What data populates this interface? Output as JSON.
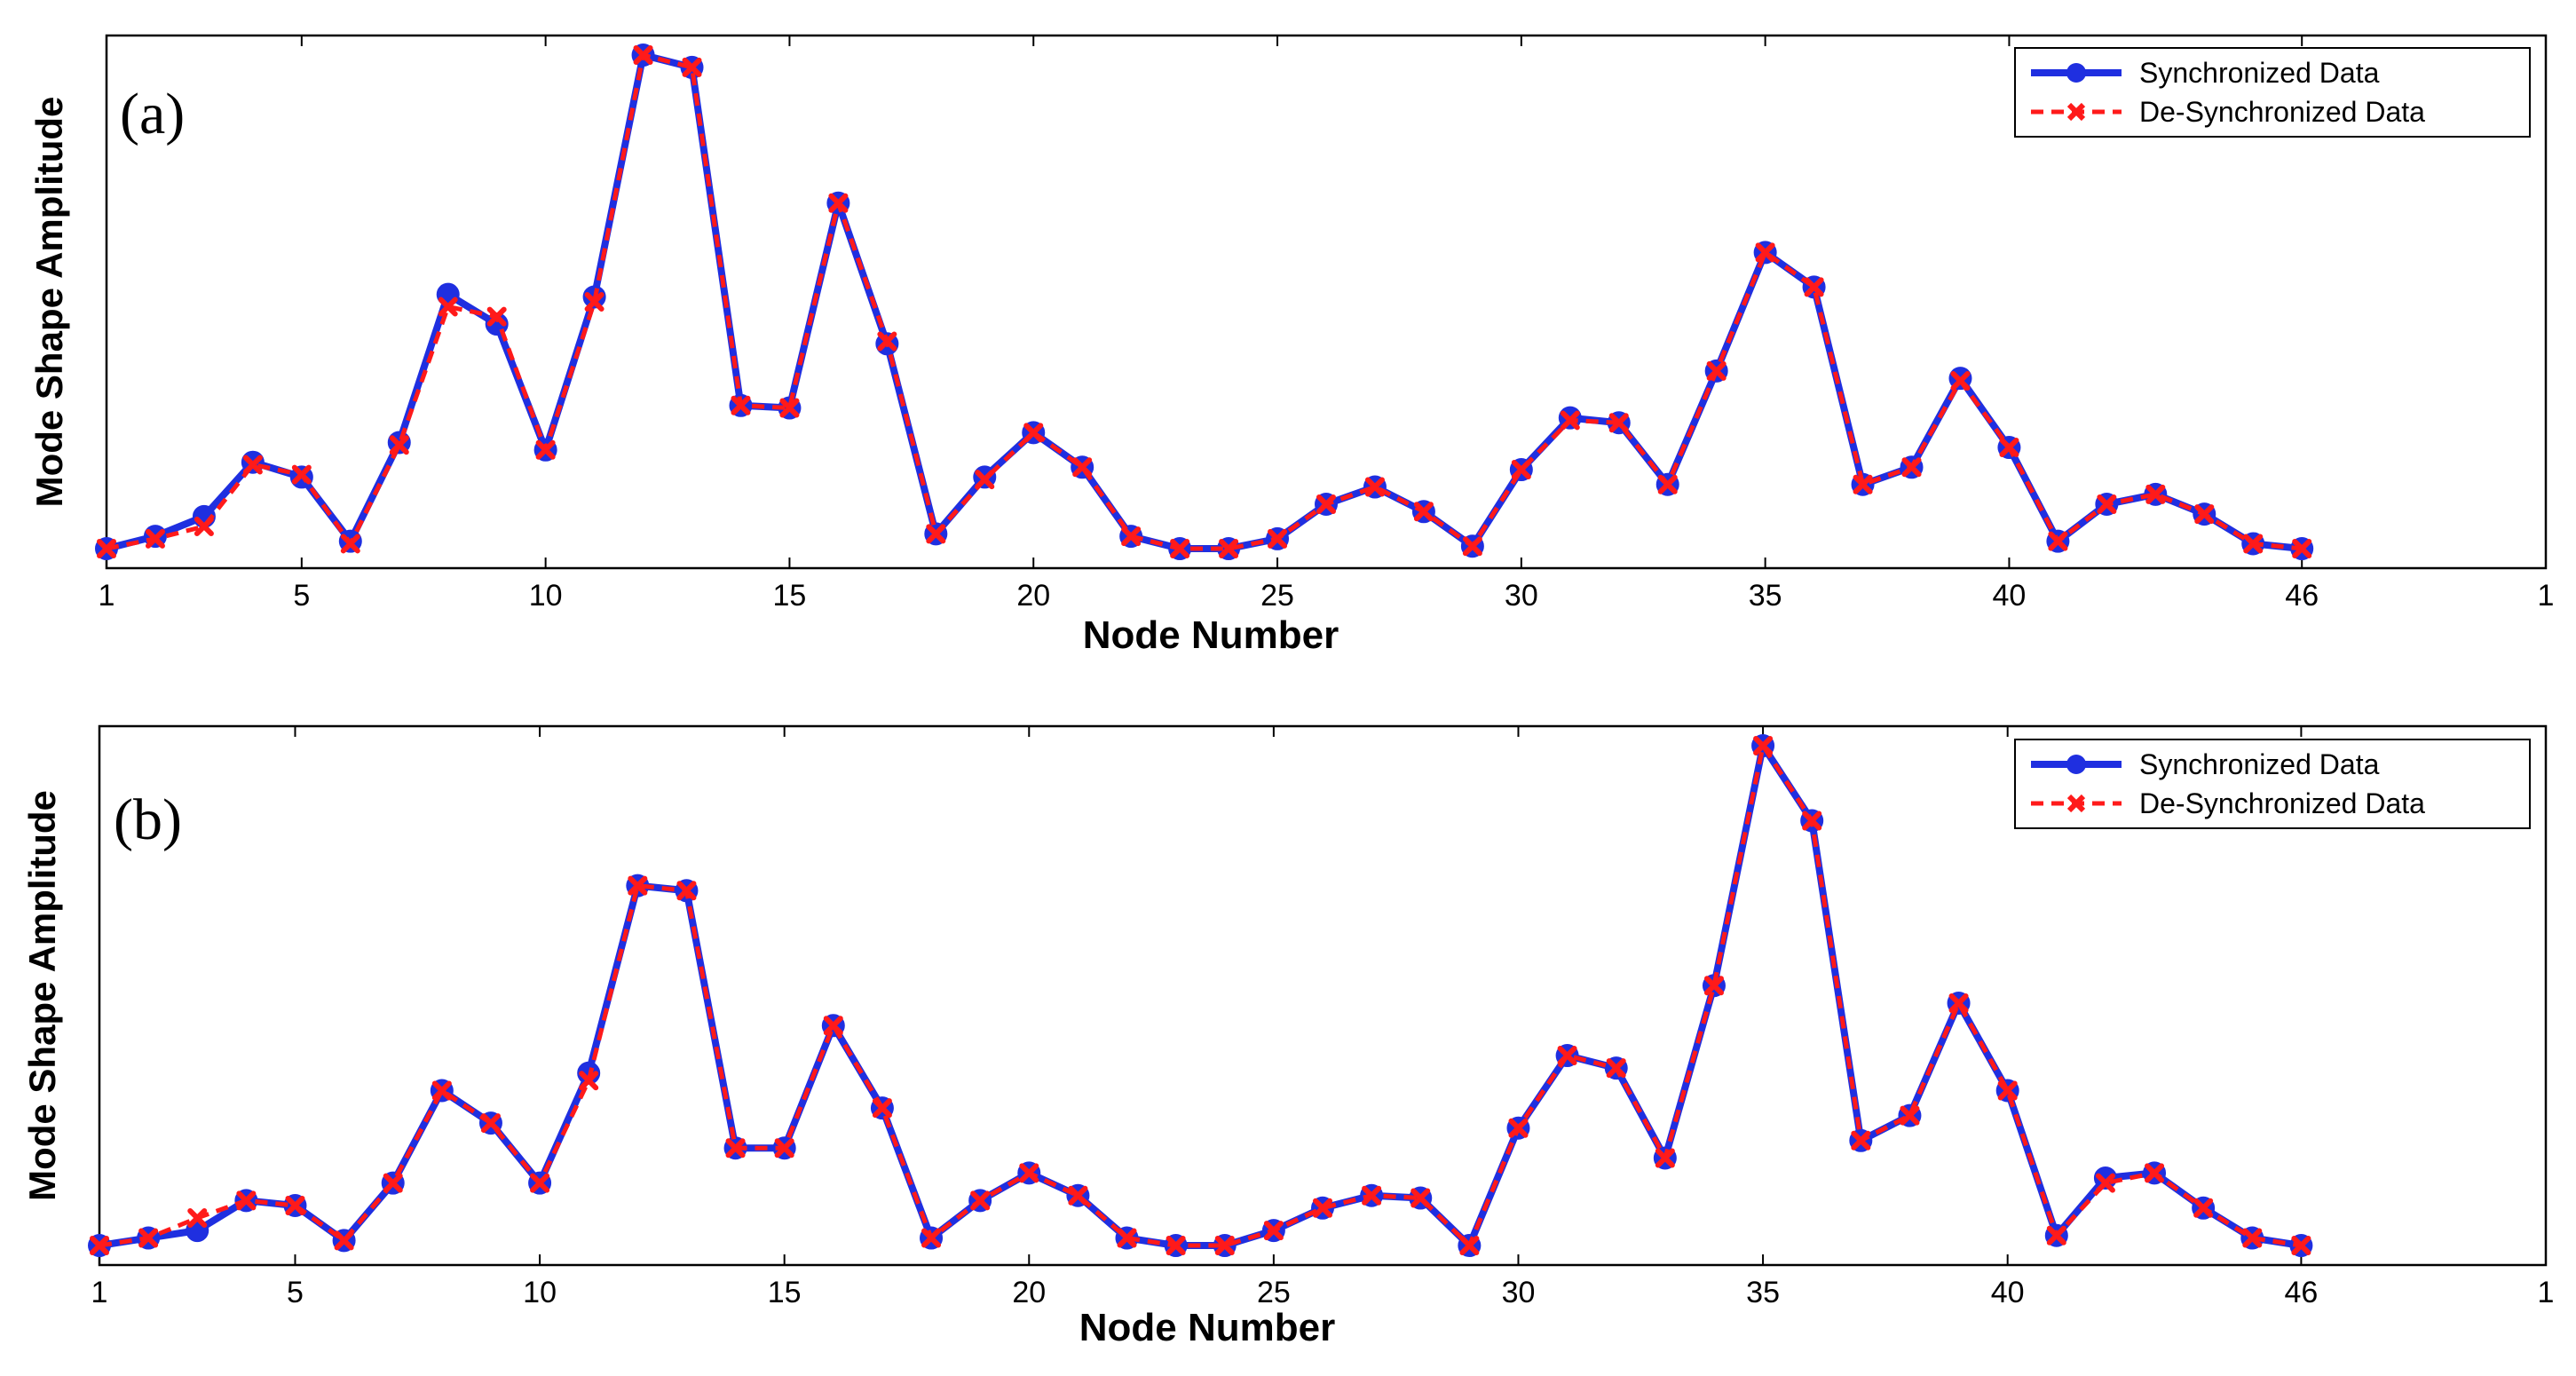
{
  "colors": {
    "synchronized": "#1f2fe0",
    "desynchronized": "#ff1a1a",
    "axis": "#000000",
    "background": "#ffffff"
  },
  "chart_data": [
    {
      "type": "line",
      "panel_label": "(a)",
      "xlabel": "Node Number",
      "ylabel": "Mode Shape Amplitude",
      "xlim": [
        1,
        51
      ],
      "ylim": [
        0,
        1
      ],
      "x_tick_labels": [
        "1",
        "5",
        "10",
        "15",
        "20",
        "25",
        "30",
        "35",
        "40",
        "46",
        "1"
      ],
      "grid": false,
      "legend_position": "top-right",
      "x": [
        1,
        2,
        3,
        4,
        5,
        6,
        7,
        8,
        9,
        10,
        11,
        12,
        13,
        14,
        15,
        16,
        17,
        18,
        19,
        20,
        21,
        22,
        23,
        24,
        25,
        26,
        27,
        28,
        29,
        30,
        31,
        32,
        33,
        34,
        35,
        36,
        37,
        38,
        39,
        40,
        41,
        42,
        43,
        44,
        45,
        46
      ],
      "series": [
        {
          "name": "Synchronized Data",
          "values": [
            0.0,
            0.025,
            0.065,
            0.175,
            0.145,
            0.015,
            0.215,
            0.515,
            0.455,
            0.2,
            0.51,
            1.0,
            0.975,
            0.29,
            0.285,
            0.7,
            0.415,
            0.03,
            0.145,
            0.235,
            0.165,
            0.025,
            0.0,
            0.0,
            0.02,
            0.09,
            0.125,
            0.075,
            0.005,
            0.16,
            0.265,
            0.255,
            0.13,
            0.36,
            0.6,
            0.53,
            0.13,
            0.165,
            0.345,
            0.205,
            0.015,
            0.09,
            0.11,
            0.07,
            0.01,
            0.0
          ]
        },
        {
          "name": "De-Synchronized Data",
          "values": [
            0.0,
            0.02,
            0.045,
            0.17,
            0.15,
            0.01,
            0.21,
            0.49,
            0.47,
            0.2,
            0.5,
            1.0,
            0.975,
            0.29,
            0.285,
            0.7,
            0.42,
            0.03,
            0.14,
            0.235,
            0.165,
            0.025,
            0.0,
            0.0,
            0.02,
            0.09,
            0.125,
            0.075,
            0.005,
            0.16,
            0.26,
            0.255,
            0.13,
            0.36,
            0.6,
            0.53,
            0.13,
            0.165,
            0.34,
            0.205,
            0.015,
            0.09,
            0.11,
            0.07,
            0.01,
            0.0
          ]
        }
      ]
    },
    {
      "type": "line",
      "panel_label": "(b)",
      "xlabel": "Node Number",
      "ylabel": "Mode Shape Amplitude",
      "xlim": [
        1,
        51
      ],
      "ylim": [
        0,
        1
      ],
      "x_tick_labels": [
        "1",
        "5",
        "10",
        "15",
        "20",
        "25",
        "30",
        "35",
        "40",
        "46",
        "1"
      ],
      "grid": false,
      "legend_position": "top-right",
      "x": [
        1,
        2,
        3,
        4,
        5,
        6,
        7,
        8,
        9,
        10,
        11,
        12,
        13,
        14,
        15,
        16,
        17,
        18,
        19,
        20,
        21,
        22,
        23,
        24,
        25,
        26,
        27,
        28,
        29,
        30,
        31,
        32,
        33,
        34,
        35,
        36,
        37,
        38,
        39,
        40,
        41,
        42,
        43,
        44,
        45,
        46
      ],
      "series": [
        {
          "name": "Synchronized Data",
          "values": [
            0.0,
            0.015,
            0.03,
            0.09,
            0.08,
            0.01,
            0.125,
            0.31,
            0.245,
            0.125,
            0.345,
            0.72,
            0.71,
            0.195,
            0.195,
            0.44,
            0.275,
            0.015,
            0.09,
            0.145,
            0.1,
            0.015,
            0.0,
            0.0,
            0.03,
            0.075,
            0.1,
            0.095,
            0.0,
            0.235,
            0.38,
            0.355,
            0.175,
            0.52,
            1.0,
            0.85,
            0.21,
            0.26,
            0.485,
            0.31,
            0.02,
            0.135,
            0.145,
            0.075,
            0.015,
            0.0
          ]
        },
        {
          "name": "De-Synchronized Data",
          "values": [
            0.0,
            0.015,
            0.055,
            0.09,
            0.08,
            0.01,
            0.125,
            0.31,
            0.245,
            0.125,
            0.33,
            0.72,
            0.71,
            0.195,
            0.195,
            0.44,
            0.275,
            0.015,
            0.09,
            0.145,
            0.1,
            0.015,
            0.0,
            0.0,
            0.03,
            0.075,
            0.1,
            0.095,
            0.0,
            0.235,
            0.38,
            0.355,
            0.175,
            0.52,
            1.0,
            0.85,
            0.21,
            0.26,
            0.485,
            0.31,
            0.02,
            0.125,
            0.145,
            0.075,
            0.015,
            0.0
          ]
        }
      ]
    }
  ]
}
